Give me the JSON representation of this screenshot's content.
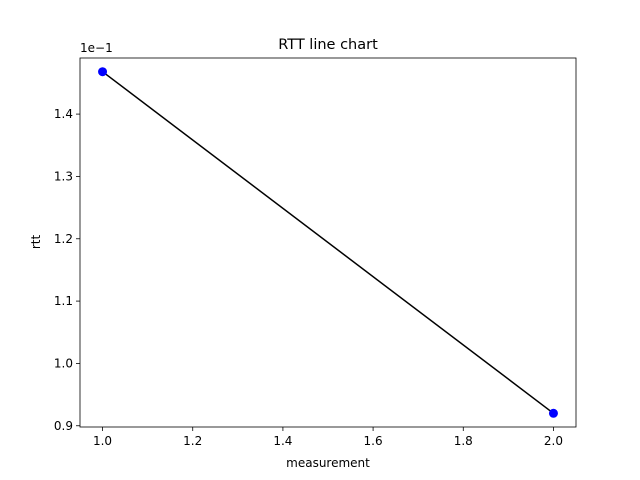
{
  "chart_data": {
    "type": "line",
    "title": "RTT line chart",
    "xlabel": "measurement",
    "ylabel": "rtt",
    "y_offset_text": "1e−1",
    "x": [
      1.0,
      2.0
    ],
    "series": [
      {
        "values": [
          0.1468,
          0.092
        ],
        "line_color": "#000000",
        "marker_color": "#0000ff"
      }
    ],
    "xlim": [
      0.95,
      2.05
    ],
    "ylim": [
      0.0898,
      0.149
    ],
    "xticks": [
      1.0,
      1.2,
      1.4,
      1.6,
      1.8,
      2.0
    ],
    "xtick_labels": [
      "1.0",
      "1.2",
      "1.4",
      "1.6",
      "1.8",
      "2.0"
    ],
    "yticks": [
      0.09,
      0.1,
      0.11,
      0.12,
      0.13,
      0.14
    ],
    "ytick_labels": [
      "0.9",
      "1.0",
      "1.1",
      "1.2",
      "1.3",
      "1.4"
    ],
    "grid": false,
    "legend": "none"
  }
}
